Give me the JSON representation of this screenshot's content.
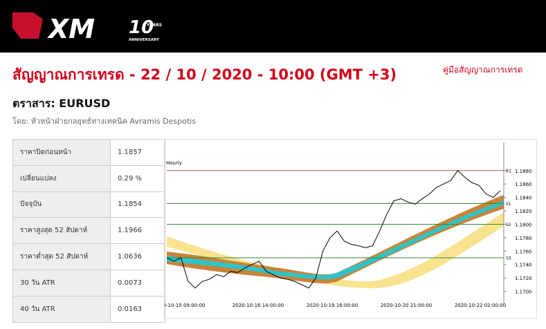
{
  "header": {
    "logo": "XM",
    "badge_number": "10",
    "badge_years": "YEARS",
    "badge_anniversary": "ANNIVERSARY"
  },
  "title": "สัญญาณการเทรด - 22 / 10 / 2020 - 10:00 (GMT +3)",
  "guide_link": "คู่มือสัญญาณการเทรด",
  "instrument": "ตราสาร: EURUSD",
  "author": "โดย: หัวหน้าฝ่ายกลยุทธ์ทางเทคนิค Avramis Despotis",
  "table": {
    "rows": [
      [
        "ราคาปิดก่อนหน้า",
        "1.1857"
      ],
      [
        "เปลี่ยนแปลง",
        "0.29 %"
      ],
      [
        "ปัจจุบัน",
        "1.1854"
      ],
      [
        "ราคาสูงสุด 52 สัปดาห์",
        "1.1966"
      ],
      [
        "ราคาต่ำสุด 52 สัปดาห์",
        "1.0636"
      ],
      [
        "30 วัน ATR",
        "0.0073"
      ],
      [
        "40 วัน ATR",
        "0.0163"
      ]
    ]
  },
  "chart_data": {
    "type": "line",
    "title": "Hourly",
    "color": "#000000",
    "ylim": [
      1.168,
      1.1922
    ],
    "yticks": [
      {
        "value": 1.17,
        "label": "1.1700"
      },
      {
        "value": 1.172,
        "label": "1.1720"
      },
      {
        "value": 1.174,
        "label": "1.1740"
      },
      {
        "value": 1.176,
        "label": "1.1760"
      },
      {
        "value": 1.178,
        "label": "1.1780"
      },
      {
        "value": 1.18,
        "label": "1.1800"
      },
      {
        "value": 1.182,
        "label": "1.1820"
      },
      {
        "value": 1.184,
        "label": "1.1840"
      },
      {
        "value": 1.186,
        "label": "1.1860"
      },
      {
        "value": 1.188,
        "label": "1.1880"
      }
    ],
    "x_labels": [
      "0-10-15 09:00:00",
      "2020-10-16 14:00:00",
      "2020-10-19 16:00:00",
      "2020-10-20 21:00:00",
      "2020-10-22 02:00:00"
    ],
    "levels": [
      {
        "name": "R1",
        "value": 1.188,
        "color": "#c0504d"
      },
      {
        "name": "S1",
        "value": 1.1831,
        "color": "#2e8b2e"
      },
      {
        "name": "S2",
        "value": 1.18,
        "color": "#2e8b2e"
      },
      {
        "name": "S3",
        "value": 1.175,
        "color": "#2e8b2e"
      }
    ],
    "values": [
      1.175,
      1.1745,
      1.175,
      1.1715,
      1.1705,
      1.1715,
      1.1718,
      1.1725,
      1.1722,
      1.173,
      1.1728,
      1.1735,
      1.174,
      1.1745,
      1.173,
      1.1725,
      1.172,
      1.1718,
      1.1715,
      1.171,
      1.1705,
      1.172,
      1.176,
      1.178,
      1.179,
      1.1775,
      1.177,
      1.1768,
      1.1765,
      1.1768,
      1.179,
      1.1815,
      1.1835,
      1.1838,
      1.1833,
      1.183,
      1.1838,
      1.1845,
      1.1855,
      1.186,
      1.1865,
      1.188,
      1.187,
      1.1862,
      1.1858,
      1.1845,
      1.184,
      1.185
    ]
  }
}
